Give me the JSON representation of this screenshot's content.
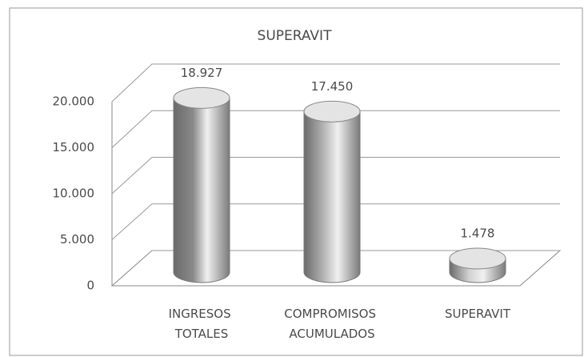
{
  "chart_data": {
    "type": "bar3d",
    "title": "SUPERAVIT",
    "categories": [
      "INGRESOS TOTALES",
      "COMPROMISOS ACUMULADOS",
      "SUPERAVIT"
    ],
    "values": [
      18927,
      17450,
      1478
    ],
    "value_labels": [
      "18.927",
      "17.450",
      "1.478"
    ],
    "colors": [
      "#8a8a8a",
      "#b4b4b4",
      "#d2d2d2"
    ],
    "ylim": [
      0,
      20000
    ],
    "yticks": [
      {
        "value": 0,
        "label": "0"
      },
      {
        "value": 5000,
        "label": "5.000"
      },
      {
        "value": 10000,
        "label": "10.000"
      },
      {
        "value": 15000,
        "label": "15.000"
      },
      {
        "value": 20000,
        "label": "20.000"
      }
    ],
    "grid": true
  }
}
